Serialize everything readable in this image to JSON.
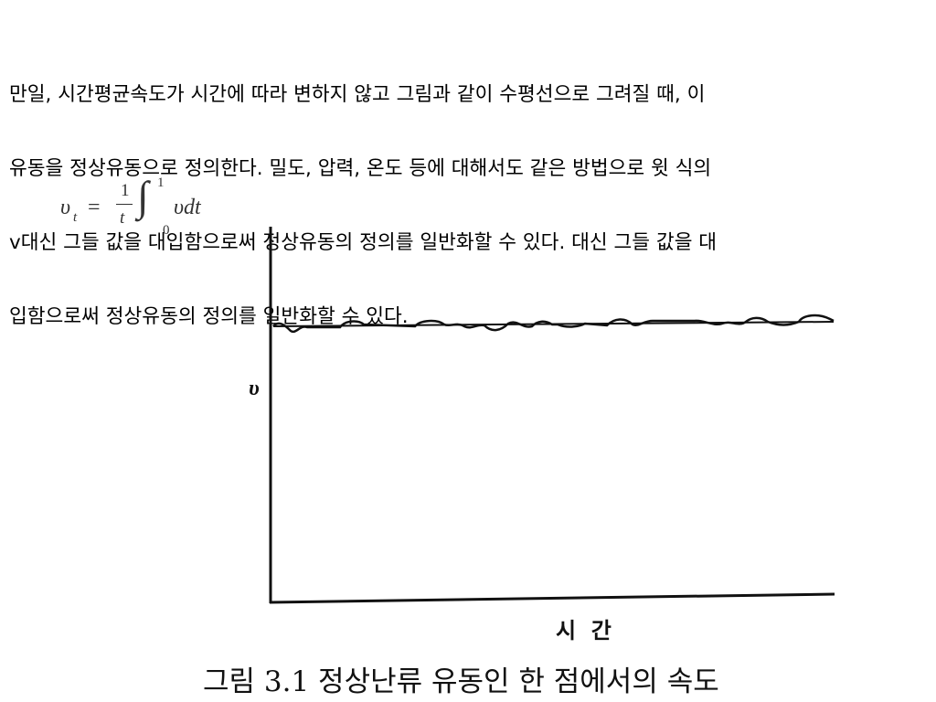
{
  "paragraph": {
    "lines": [
      "만일, 시간평균속도가 시간에 따라 변하지 않고 그림과 같이 수평선으로 그려질 때, 이",
      "유동을 정상유동으로 정의한다. 밀도, 압력, 온도 등에 대해서도 같은 방법으로 윗 식의",
      "v대신 그들 값을 대입함으로써 정상유동의 정의를 일반화할 수 있다. 대신 그들 값을 대",
      "입함으로써 정상유동의 정의를 일반화할 수 있다."
    ]
  },
  "formula": {
    "lhs": "υ",
    "lhs_sub": "t",
    "equals": "=",
    "numerator": "1",
    "denominator": "t",
    "integral": "∫",
    "upper": "1",
    "lower": "0",
    "integrand": "υdt"
  },
  "figure": {
    "y_label": "υ",
    "x_label": "시  간",
    "caption": "그림 3.1 정상난류 유동인 한 점에서의 속도"
  }
}
